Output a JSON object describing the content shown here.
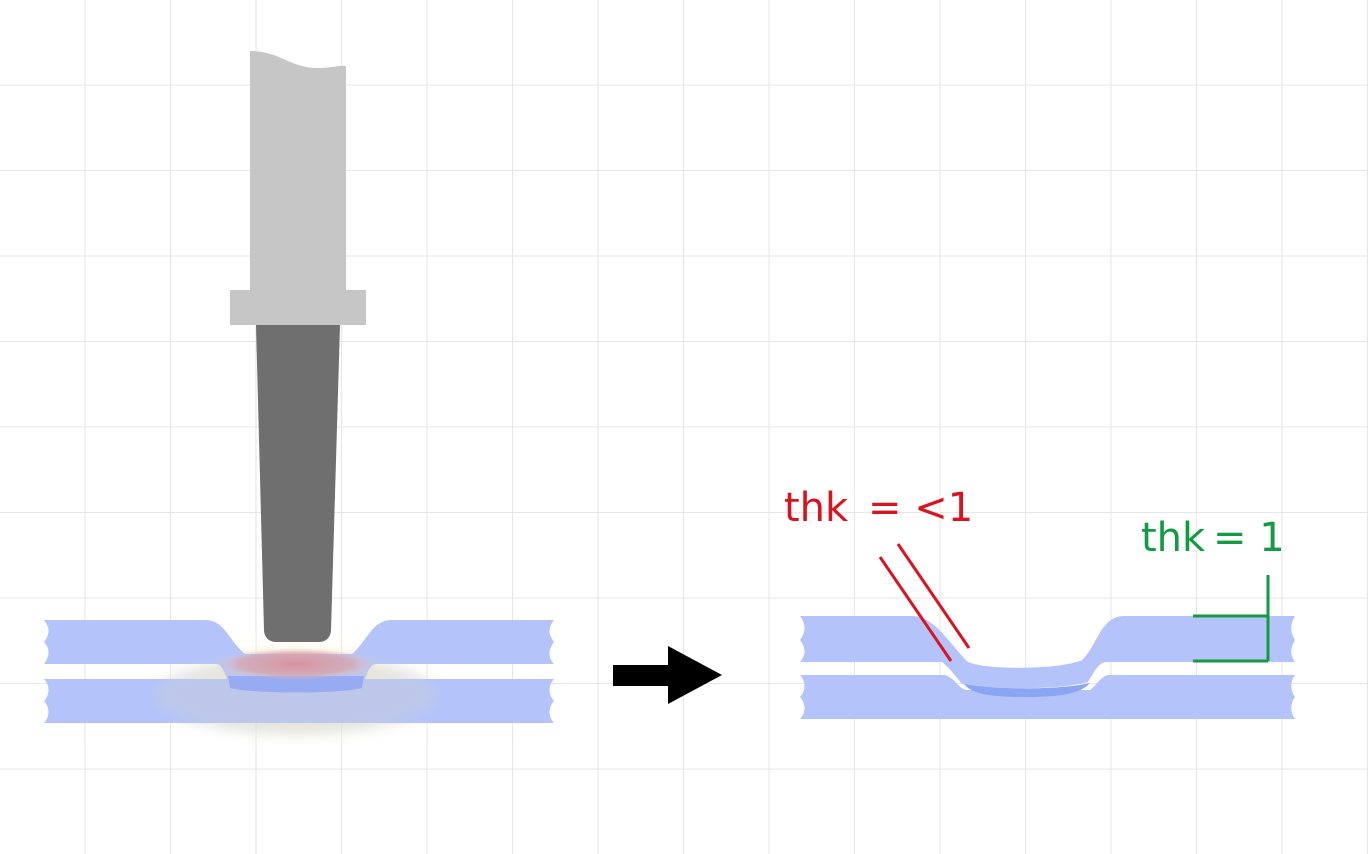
{
  "labels": {
    "thin_label_left": "thk",
    "thin_label_right": "= <1",
    "normal_label_left": "thk",
    "normal_label_right": "= 1"
  },
  "colors": {
    "sheet": "#b4c4fa",
    "nugget": "#8ca4f4",
    "heat": "#d89aa2",
    "glow": "#fff4c4",
    "holder": "#c6c6c6",
    "electrode": "#6f6f6f",
    "thin_annotation": "#d9131f",
    "normal_annotation": "#139a43",
    "arrow": "#000000"
  },
  "icons": {
    "process_arrow": "right-arrow-icon"
  }
}
